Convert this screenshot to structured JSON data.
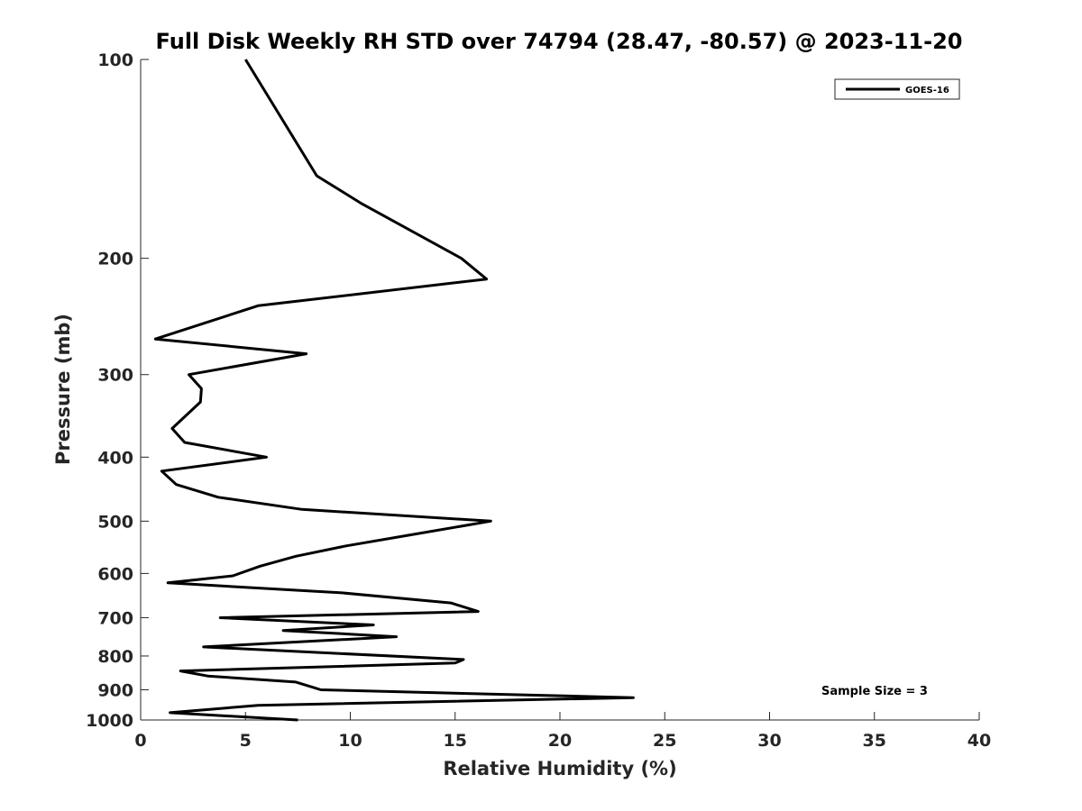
{
  "chart_data": {
    "type": "line",
    "title": "Full Disk Weekly RH STD over 74794 (28.47, -80.57) @ 2023-11-20",
    "xlabel": "Relative Humidity (%)",
    "ylabel": "Pressure (mb)",
    "xlim": [
      0,
      40
    ],
    "ylim": [
      1000,
      100
    ],
    "yscale": "log",
    "xticks": [
      0,
      5,
      10,
      15,
      20,
      25,
      30,
      35,
      40
    ],
    "xtick_labels": [
      "0",
      "5",
      "10",
      "15",
      "20",
      "25",
      "30",
      "35",
      "40"
    ],
    "yticks": [
      100,
      200,
      300,
      400,
      500,
      600,
      700,
      800,
      900,
      1000
    ],
    "ytick_labels": [
      "100",
      "200",
      "300",
      "400",
      "500",
      "600",
      "700",
      "800",
      "900",
      "1000"
    ],
    "grid": false,
    "legend_position": "top-right",
    "annotation": "Sample Size = 3",
    "series": [
      {
        "name": "GOES-16",
        "color": "#000000",
        "points": [
          [
            5.0,
            100
          ],
          [
            8.4,
            150
          ],
          [
            10.5,
            165
          ],
          [
            15.3,
            200
          ],
          [
            16.5,
            215
          ],
          [
            5.6,
            236
          ],
          [
            0.7,
            265
          ],
          [
            7.9,
            279
          ],
          [
            2.3,
            300
          ],
          [
            2.9,
            315
          ],
          [
            2.85,
            330
          ],
          [
            1.5,
            362
          ],
          [
            2.1,
            380
          ],
          [
            6.0,
            400
          ],
          [
            1.0,
            420
          ],
          [
            1.7,
            440
          ],
          [
            3.7,
            460
          ],
          [
            7.7,
            480
          ],
          [
            16.7,
            500
          ],
          [
            12.8,
            525
          ],
          [
            9.8,
            545
          ],
          [
            7.4,
            565
          ],
          [
            5.7,
            585
          ],
          [
            4.4,
            605
          ],
          [
            1.3,
            620
          ],
          [
            9.6,
            642
          ],
          [
            14.8,
            665
          ],
          [
            16.1,
            685
          ],
          [
            3.8,
            700
          ],
          [
            11.1,
            718
          ],
          [
            6.8,
            732
          ],
          [
            12.2,
            748
          ],
          [
            3.0,
            775
          ],
          [
            15.4,
            810
          ],
          [
            15.0,
            820
          ],
          [
            1.9,
            843
          ],
          [
            3.2,
            858
          ],
          [
            7.4,
            876
          ],
          [
            8.6,
            900
          ],
          [
            23.5,
            925
          ],
          [
            5.6,
            950
          ],
          [
            1.4,
            975
          ],
          [
            7.5,
            1000
          ]
        ]
      }
    ]
  }
}
